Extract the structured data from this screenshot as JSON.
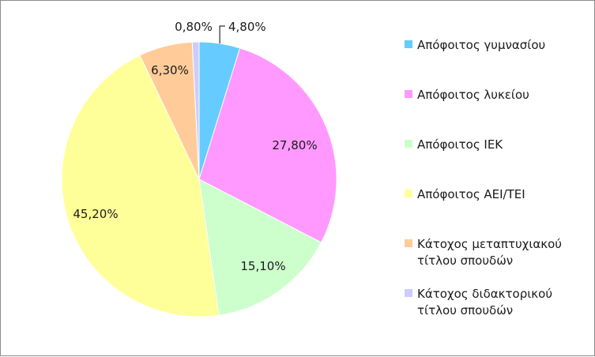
{
  "chart_data": {
    "type": "pie",
    "title": "",
    "categories": [
      "Απόφοιτος γυμνασίου",
      "Απόφοιτος λυκείου",
      "Απόφοιτος ΙΕΚ",
      "Απόφοιτος ΑΕΙ/ΤΕΙ",
      "Κάτοχος μεταπτυχιακού τίτλου σπουδών",
      "Κάτοχος διδακτορικού τίτλου σπουδών"
    ],
    "legend_lines": [
      [
        "Απόφοιτος γυμνασίου"
      ],
      [
        "Απόφοιτος λυκείου"
      ],
      [
        "Απόφοιτος ΙΕΚ"
      ],
      [
        "Απόφοιτος ΑΕΙ/ΤΕΙ"
      ],
      [
        "Κάτοχος μεταπτυχιακού",
        "τίτλου σπουδών"
      ],
      [
        "Κάτοχος διδακτορικού",
        "τίτλου σπουδών"
      ]
    ],
    "values": [
      4.8,
      27.8,
      15.1,
      45.2,
      6.3,
      0.8
    ],
    "data_labels": [
      "4,80%",
      "27,80%",
      "15,10%",
      "45,20%",
      "6,30%",
      "0,80%"
    ],
    "colors": [
      "#66ccff",
      "#ff99ff",
      "#ccffcc",
      "#ffff99",
      "#ffcc99",
      "#ccccff"
    ],
    "legend_position": "right"
  }
}
